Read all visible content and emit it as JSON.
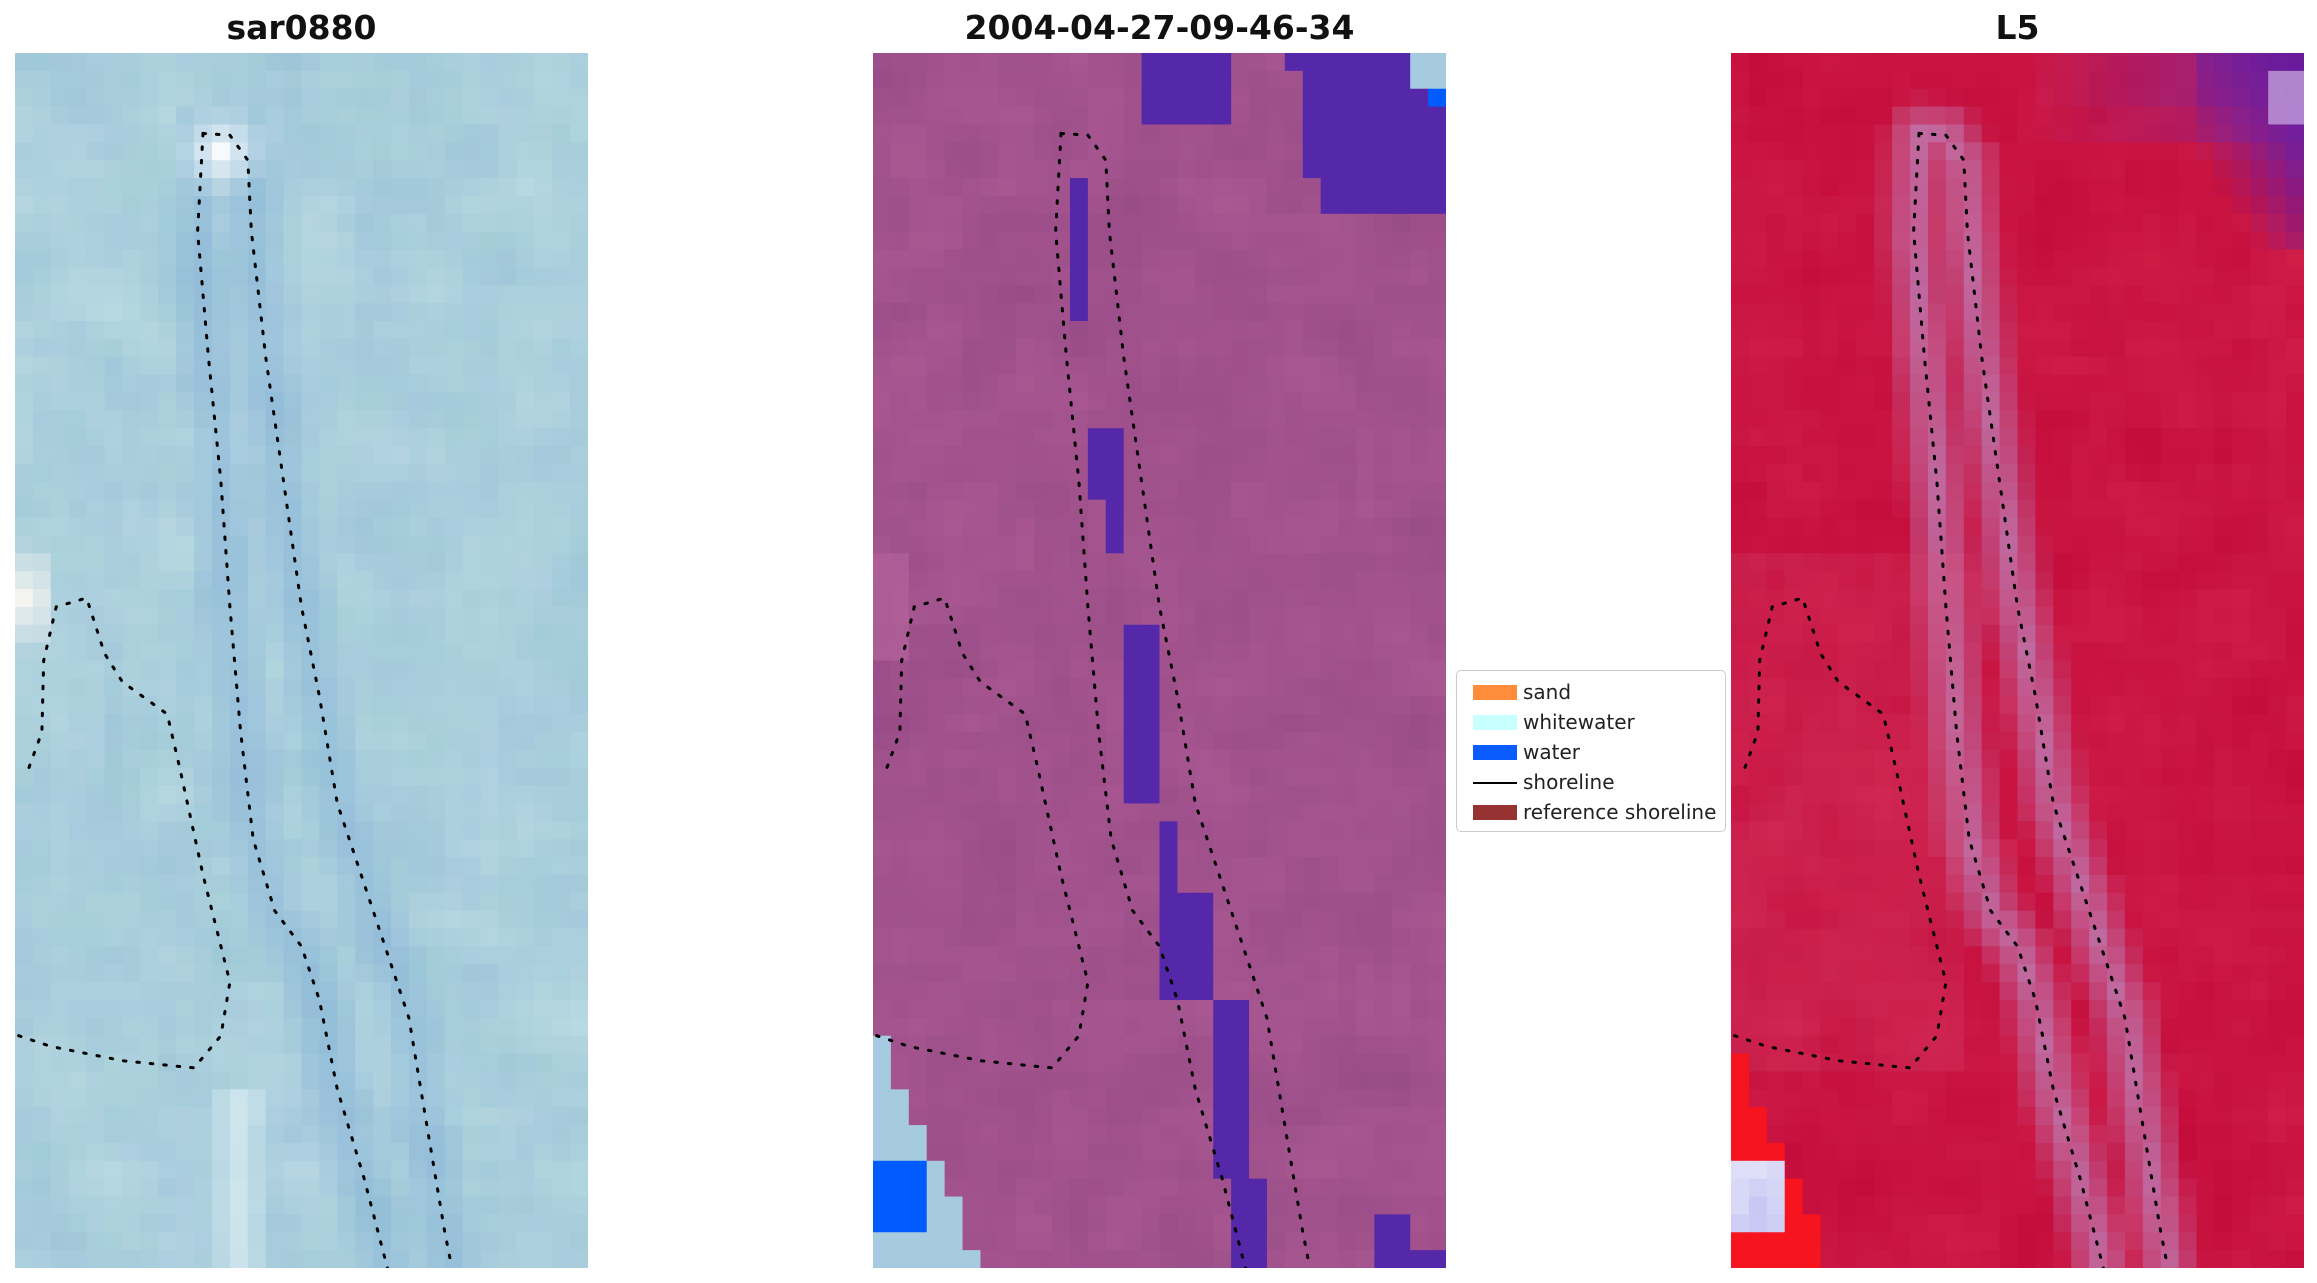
{
  "panels": [
    {
      "title": "sar0880",
      "theme": "rgb"
    },
    {
      "title": "2004-04-27-09-46-34",
      "theme": "classified"
    },
    {
      "title": "L5",
      "theme": "index"
    }
  ],
  "legend": {
    "items": [
      {
        "label": "sand",
        "kind": "patch",
        "color": "#ff8c3a"
      },
      {
        "label": "whitewater",
        "kind": "patch",
        "color": "#c8ffff"
      },
      {
        "label": "water",
        "kind": "patch",
        "color": "#0a5cff"
      },
      {
        "label": "shoreline",
        "kind": "line",
        "color": "#000000"
      },
      {
        "label": "reference shoreline",
        "kind": "patch",
        "color": "#963232"
      }
    ]
  }
}
